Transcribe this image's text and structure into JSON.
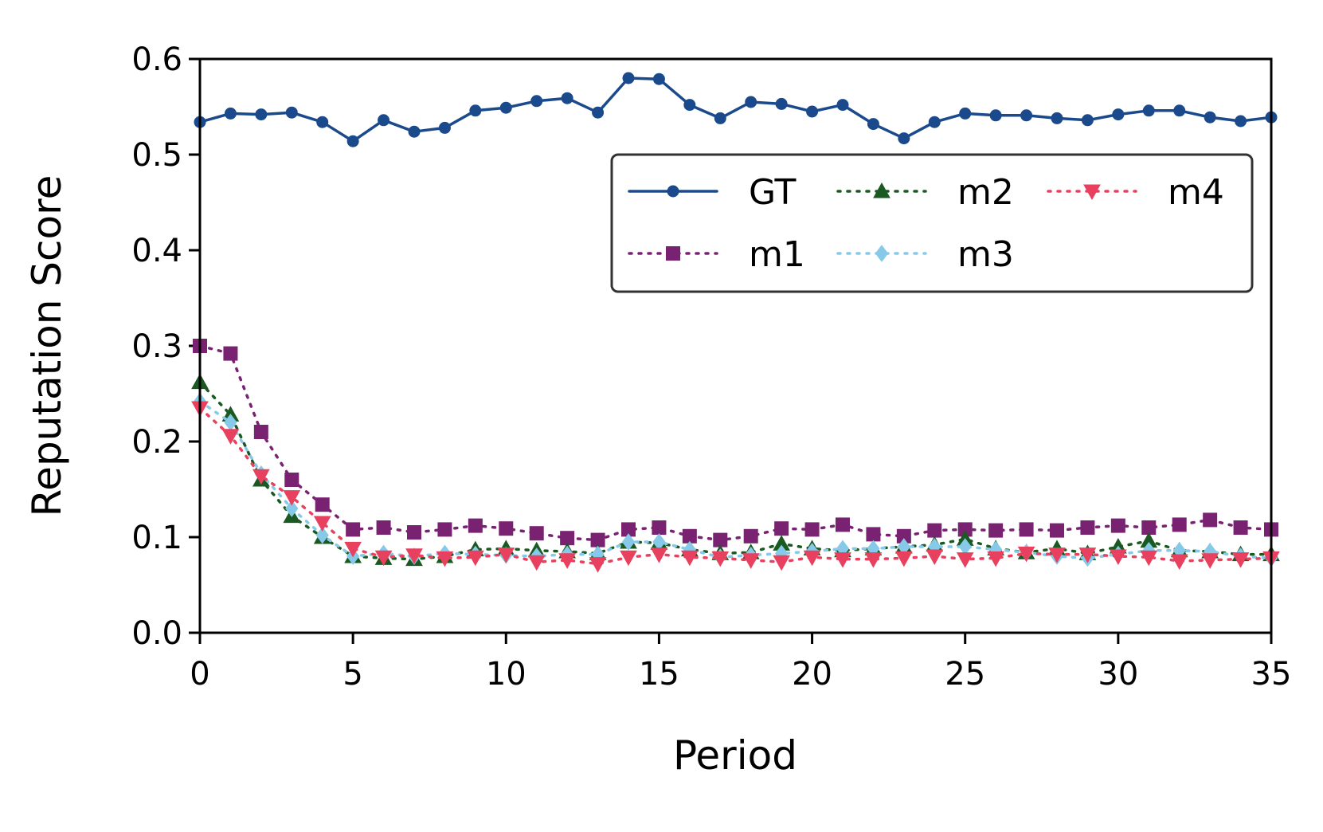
{
  "chart_data": {
    "type": "line",
    "title": "",
    "xlabel": "Period",
    "ylabel": "Reputation Score",
    "xlim": [
      0,
      35
    ],
    "ylim": [
      0.0,
      0.6
    ],
    "xticks": [
      "0",
      "5",
      "10",
      "15",
      "20",
      "25",
      "30",
      "35"
    ],
    "yticks": [
      "0.0",
      "0.1",
      "0.2",
      "0.3",
      "0.4",
      "0.5",
      "0.6"
    ],
    "grid": false,
    "legend_position": "upper-right",
    "x": [
      0,
      1,
      2,
      3,
      4,
      5,
      6,
      7,
      8,
      9,
      10,
      11,
      12,
      13,
      14,
      15,
      16,
      17,
      18,
      19,
      20,
      21,
      22,
      23,
      24,
      25,
      26,
      27,
      28,
      29,
      30,
      31,
      32,
      33,
      34,
      35
    ],
    "series": [
      {
        "name": "GT",
        "color": "#1b4a8c",
        "marker": "circle",
        "line_style": "solid",
        "values": [
          0.534,
          0.543,
          0.542,
          0.544,
          0.534,
          0.514,
          0.536,
          0.524,
          0.528,
          0.546,
          0.549,
          0.556,
          0.559,
          0.544,
          0.58,
          0.579,
          0.552,
          0.538,
          0.555,
          0.553,
          0.545,
          0.552,
          0.532,
          0.517,
          0.534,
          0.543,
          0.541,
          0.541,
          0.538,
          0.536,
          0.542,
          0.546,
          0.546,
          0.539,
          0.535,
          0.539
        ]
      },
      {
        "name": "m1",
        "color": "#7a2272",
        "marker": "square",
        "line_style": "dotted",
        "values": [
          0.3,
          0.292,
          0.21,
          0.16,
          0.134,
          0.108,
          0.11,
          0.105,
          0.108,
          0.112,
          0.109,
          0.104,
          0.099,
          0.097,
          0.108,
          0.11,
          0.101,
          0.097,
          0.101,
          0.109,
          0.108,
          0.113,
          0.103,
          0.101,
          0.107,
          0.108,
          0.107,
          0.108,
          0.107,
          0.11,
          0.112,
          0.11,
          0.113,
          0.118,
          0.11,
          0.108
        ]
      },
      {
        "name": "m2",
        "color": "#1a5a22",
        "marker": "triangle-up",
        "line_style": "dotted",
        "values": [
          0.262,
          0.228,
          0.16,
          0.122,
          0.1,
          0.08,
          0.078,
          0.077,
          0.08,
          0.087,
          0.088,
          0.086,
          0.085,
          0.083,
          0.095,
          0.094,
          0.087,
          0.083,
          0.084,
          0.093,
          0.088,
          0.086,
          0.088,
          0.09,
          0.092,
          0.098,
          0.088,
          0.084,
          0.088,
          0.083,
          0.09,
          0.096,
          0.086,
          0.085,
          0.082,
          0.082
        ]
      },
      {
        "name": "m3",
        "color": "#86c9e8",
        "marker": "diamond",
        "line_style": "dotted",
        "values": [
          0.242,
          0.22,
          0.166,
          0.13,
          0.102,
          0.08,
          0.083,
          0.08,
          0.083,
          0.082,
          0.081,
          0.08,
          0.082,
          0.082,
          0.095,
          0.095,
          0.087,
          0.079,
          0.081,
          0.083,
          0.085,
          0.088,
          0.088,
          0.09,
          0.09,
          0.09,
          0.087,
          0.084,
          0.08,
          0.078,
          0.082,
          0.086,
          0.086,
          0.085,
          0.08,
          0.078
        ]
      },
      {
        "name": "m4",
        "color": "#e8405f",
        "marker": "triangle-down",
        "line_style": "dotted",
        "values": [
          0.235,
          0.206,
          0.164,
          0.142,
          0.115,
          0.088,
          0.079,
          0.081,
          0.078,
          0.079,
          0.082,
          0.074,
          0.076,
          0.072,
          0.079,
          0.082,
          0.079,
          0.078,
          0.076,
          0.074,
          0.079,
          0.077,
          0.077,
          0.078,
          0.08,
          0.077,
          0.078,
          0.083,
          0.082,
          0.082,
          0.08,
          0.079,
          0.075,
          0.076,
          0.077,
          0.078
        ]
      }
    ]
  }
}
